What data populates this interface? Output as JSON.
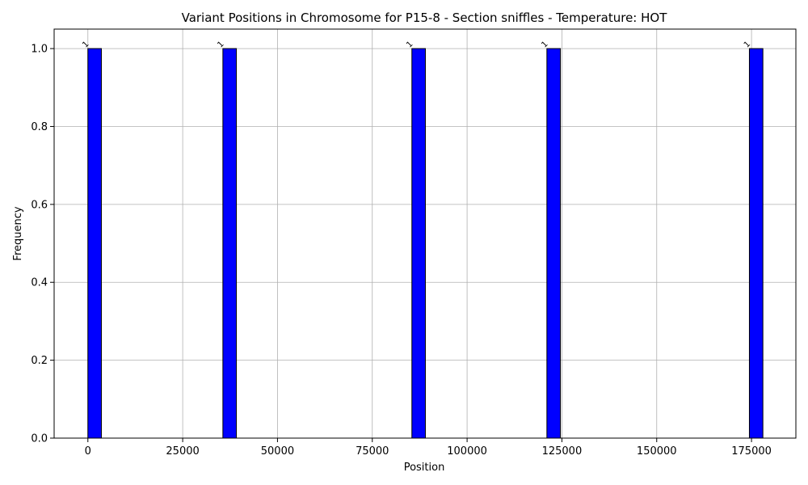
{
  "chart_data": {
    "type": "bar",
    "title": "Variant Positions in Chromosome for P15-8 - Section sniffles - Temperature: HOT",
    "xlabel": "Position",
    "ylabel": "Frequency",
    "xlim": [
      -8900,
      186700
    ],
    "ylim": [
      0,
      1.05
    ],
    "grid": true,
    "bar_color": "#0000ff",
    "bar_edge_color": "#000000",
    "bin_width": 3560,
    "x_ticks": [
      0,
      25000,
      50000,
      75000,
      100000,
      125000,
      150000,
      175000
    ],
    "x_tick_labels": [
      "0",
      "25000",
      "50000",
      "75000",
      "100000",
      "125000",
      "150000",
      "175000"
    ],
    "y_ticks": [
      0,
      0.2,
      0.4,
      0.6,
      0.8,
      1.0
    ],
    "y_tick_labels": [
      "0.0",
      "0.2",
      "0.4",
      "0.6",
      "0.8",
      "1.0"
    ],
    "bars": [
      {
        "x": 0,
        "value": 1,
        "label": "1"
      },
      {
        "x": 35600,
        "value": 1,
        "label": "1"
      },
      {
        "x": 85440,
        "value": 1,
        "label": "1"
      },
      {
        "x": 121040,
        "value": 1,
        "label": "1"
      },
      {
        "x": 174440,
        "value": 1,
        "label": "1"
      }
    ]
  }
}
